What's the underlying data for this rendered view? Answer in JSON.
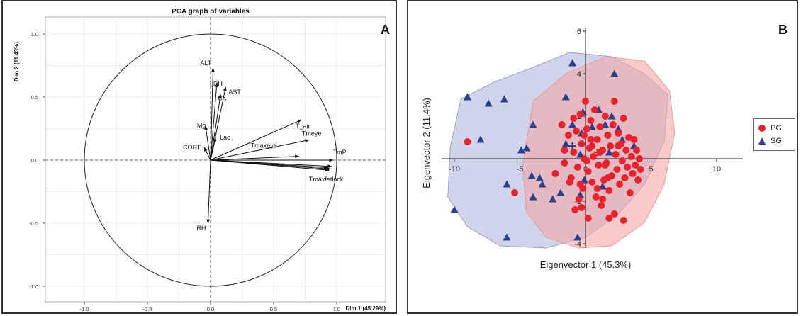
{
  "chart_data": [
    {
      "type": "scatter",
      "subtype": "pca-correlation-circle",
      "panel_label": "A",
      "title": "PCA graph of variables",
      "xlabel": "Dim 1 (45.29%)",
      "ylabel": "Dim 2 (11.43%)",
      "xlim": [
        -1.0,
        1.0
      ],
      "ylim": [
        -1.0,
        1.0
      ],
      "xticks": [
        "-1.0",
        "-0.5",
        "0.0",
        "0.5",
        "1.0"
      ],
      "yticks": [
        "-1.0",
        "-0.5",
        "0.0",
        "0.5",
        "1.0"
      ],
      "grid": true,
      "unit_circle": true,
      "variables": [
        {
          "name": "ALT",
          "x": 0.02,
          "y": 0.73
        },
        {
          "name": "LDH",
          "x": 0.05,
          "y": 0.61
        },
        {
          "name": "CK",
          "x": 0.08,
          "y": 0.52
        },
        {
          "name": "AST",
          "x": 0.12,
          "y": 0.58
        },
        {
          "name": "Mg",
          "x": -0.04,
          "y": 0.27
        },
        {
          "name": "CORT",
          "x": -0.05,
          "y": 0.1
        },
        {
          "name": "Lac",
          "x": 0.04,
          "y": 0.18
        },
        {
          "name": "T_air",
          "x": 0.72,
          "y": 0.32
        },
        {
          "name": "Tmeye",
          "x": 0.78,
          "y": 0.16
        },
        {
          "name": "Tmaxeye",
          "x": 0.7,
          "y": 0.03
        },
        {
          "name": "TmP",
          "x": 0.97,
          "y": 0.0
        },
        {
          "name": "Tmaxfetlock",
          "x": 0.96,
          "y": -0.05
        },
        {
          "name": "RH",
          "x": -0.02,
          "y": -0.5
        }
      ],
      "extra_arrows": [
        {
          "x": 0.95,
          "y": -0.07
        },
        {
          "x": 0.94,
          "y": -0.08
        },
        {
          "x": 0.93,
          "y": -0.06
        }
      ]
    },
    {
      "type": "scatter",
      "panel_label": "B",
      "xlabel": "Eigenvector 1 (45.3%)",
      "ylabel": "Eigenvector 2 (11.4%)",
      "xlim": [
        -11,
        12
      ],
      "ylim": [
        -4.5,
        6
      ],
      "xticks": [
        "-10",
        "-5",
        "0",
        "5",
        "10"
      ],
      "yticks": [
        "-4",
        "-2",
        "2",
        "4",
        "6"
      ],
      "grid": false,
      "legend_position": "right",
      "colors": {
        "PG": "#e8222c",
        "SG": "#2b3f8f",
        "PG_fill": "#f4a7a7",
        "SG_fill": "#aab0d8"
      },
      "series": [
        {
          "name": "SG",
          "marker": "triangle",
          "points": [
            [
              -9,
              2.9
            ],
            [
              -10,
              -2.4
            ],
            [
              -6,
              -1.2
            ],
            [
              -6,
              -3.7
            ],
            [
              -7.4,
              2.6
            ],
            [
              -6.2,
              2.8
            ],
            [
              -8,
              0.9
            ],
            [
              -4,
              1.6
            ],
            [
              -4.5,
              0.5
            ],
            [
              -3.5,
              -0.9
            ],
            [
              -4.9,
              0.4
            ],
            [
              -4.1,
              -0.8
            ],
            [
              -4,
              -1.8
            ],
            [
              -3.3,
              -1.2
            ],
            [
              -1,
              4.5
            ],
            [
              -1.5,
              2.9
            ],
            [
              -1,
              1.6
            ],
            [
              -1.5,
              0.7
            ],
            [
              -1.9,
              -1.6
            ],
            [
              -2.5,
              -1.9
            ],
            [
              -0.6,
              -3.7
            ],
            [
              -0.4,
              -1.7
            ],
            [
              -0.3,
              1.2
            ],
            [
              0.5,
              1.5
            ],
            [
              1,
              2.3
            ],
            [
              1.5,
              1.6
            ],
            [
              2,
              2
            ],
            [
              2.5,
              1.4
            ],
            [
              1.8,
              0.3
            ],
            [
              0.4,
              0.6
            ],
            [
              -0.4,
              0.2
            ],
            [
              -0.1,
              -1
            ],
            [
              1.3,
              -1.3
            ],
            [
              2.8,
              0.9
            ],
            [
              3.7,
              0.6
            ],
            [
              2.2,
              4
            ],
            [
              -0.2,
              2.2
            ]
          ]
        },
        {
          "name": "PG",
          "marker": "circle",
          "points": [
            [
              -9,
              0.8
            ],
            [
              -5.4,
              -1.6
            ],
            [
              -2.3,
              -0.7
            ],
            [
              -1.8,
              1.6
            ],
            [
              -1.6,
              0.4
            ],
            [
              -1.3,
              1.1
            ],
            [
              -1.1,
              -0.9
            ],
            [
              -0.9,
              0.3
            ],
            [
              -0.7,
              1.3
            ],
            [
              -0.6,
              -0.4
            ],
            [
              -0.4,
              2.1
            ],
            [
              -0.3,
              0.7
            ],
            [
              -0.2,
              -1.4
            ],
            [
              -0.1,
              0
            ],
            [
              0,
              2.7
            ],
            [
              0.1,
              1.4
            ],
            [
              0.2,
              -0.6
            ],
            [
              0.3,
              0.5
            ],
            [
              0.4,
              1.8
            ],
            [
              0.5,
              -1.1
            ],
            [
              0.6,
              0.1
            ],
            [
              0.7,
              2.3
            ],
            [
              0.8,
              -1.8
            ],
            [
              0.9,
              0.9
            ],
            [
              1,
              -0.3
            ],
            [
              1.1,
              1.5
            ],
            [
              1.2,
              -2.2
            ],
            [
              1.3,
              0.4
            ],
            [
              1.4,
              -1
            ],
            [
              1.5,
              2
            ],
            [
              1.6,
              -0.2
            ],
            [
              1.7,
              1.1
            ],
            [
              1.8,
              -1.5
            ],
            [
              1.9,
              0.6
            ],
            [
              2,
              -0.8
            ],
            [
              2.1,
              1.6
            ],
            [
              2.2,
              -2.6
            ],
            [
              2.3,
              0.2
            ],
            [
              2.4,
              -0.5
            ],
            [
              2.5,
              1.2
            ],
            [
              2.6,
              -1.2
            ],
            [
              2.7,
              0.7
            ],
            [
              2.8,
              -0.1
            ],
            [
              2.9,
              1.9
            ],
            [
              3,
              -0.9
            ],
            [
              3.1,
              0.4
            ],
            [
              3.2,
              -0.4
            ],
            [
              3.3,
              1
            ],
            [
              3.4,
              -1.6
            ],
            [
              3.5,
              0.1
            ],
            [
              3.6,
              -0.7
            ],
            [
              3.7,
              0.9
            ],
            [
              3.8,
              -0.3
            ],
            [
              3.9,
              0.4
            ],
            [
              4,
              -1
            ],
            [
              4.1,
              0
            ],
            [
              4.2,
              -0.5
            ],
            [
              0.5,
              0.6
            ],
            [
              -0.5,
              -1.9
            ],
            [
              -0.8,
              -2.4
            ],
            [
              0.2,
              -2.8
            ],
            [
              -0.3,
              -2.3
            ],
            [
              1.8,
              -2.8
            ],
            [
              2.9,
              -2.9
            ],
            [
              1.3,
              -1.9
            ],
            [
              -1.2,
              -1.1
            ],
            [
              -1.6,
              -0.2
            ],
            [
              0.4,
              0.9
            ],
            [
              1.1,
              0.3
            ],
            [
              2.2,
              2.7
            ],
            [
              -0.4,
              -1.2
            ],
            [
              0.9,
              -1.4
            ],
            [
              1.7,
              -0.9
            ],
            [
              0.1,
              -0.1
            ],
            [
              -0.9,
              1.9
            ],
            [
              2.5,
              0.6
            ],
            [
              -0.1,
              1.1
            ],
            [
              1.5,
              -0.3
            ]
          ]
        }
      ],
      "hulls": [
        {
          "name": "SG",
          "points": [
            [
              -9.5,
              2.8
            ],
            [
              -7,
              3.6
            ],
            [
              -4,
              4.3
            ],
            [
              -1.2,
              5
            ],
            [
              2,
              4.8
            ],
            [
              4.5,
              4
            ],
            [
              6.3,
              3
            ],
            [
              6,
              0.8
            ],
            [
              4.5,
              -1.2
            ],
            [
              2.5,
              -2.6
            ],
            [
              0,
              -3.7
            ],
            [
              -3,
              -4.2
            ],
            [
              -6.5,
              -4.1
            ],
            [
              -9,
              -3.2
            ],
            [
              -10.5,
              -1.8
            ],
            [
              -10.3,
              0.6
            ]
          ]
        },
        {
          "name": "PG",
          "points": [
            [
              -4,
              2.7
            ],
            [
              -1.5,
              4
            ],
            [
              1.5,
              4.8
            ],
            [
              4.5,
              4.6
            ],
            [
              6.4,
              3.2
            ],
            [
              6.8,
              1.2
            ],
            [
              6,
              -1.2
            ],
            [
              4.5,
              -3
            ],
            [
              2,
              -4.1
            ],
            [
              -0.5,
              -4.2
            ],
            [
              -3,
              -3.7
            ],
            [
              -4.5,
              -2.5
            ],
            [
              -4.8,
              -0.4
            ]
          ]
        }
      ],
      "centroids": [
        {
          "name": "SG",
          "x": -1.0,
          "y": 0.6
        },
        {
          "name": "PG",
          "x": 0.9,
          "y": 0.3
        }
      ],
      "legend": [
        "PG",
        "SG"
      ]
    }
  ]
}
